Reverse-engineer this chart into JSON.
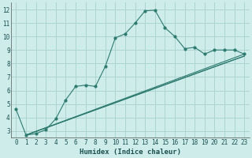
{
  "xlabel": "Humidex (Indice chaleur)",
  "background_color": "#ceecea",
  "grid_color": "#aed4d0",
  "line_color": "#2d7a6f",
  "xlim": [
    -0.5,
    23.5
  ],
  "ylim": [
    2.5,
    12.5
  ],
  "xticks": [
    0,
    1,
    2,
    3,
    4,
    5,
    6,
    7,
    8,
    9,
    10,
    11,
    12,
    13,
    14,
    15,
    16,
    17,
    18,
    19,
    20,
    21,
    22,
    23
  ],
  "yticks": [
    3,
    4,
    5,
    6,
    7,
    8,
    9,
    10,
    11,
    12
  ],
  "series_main": {
    "x": [
      0,
      1,
      2,
      3,
      4,
      5,
      6,
      7,
      8,
      9,
      10,
      11,
      12,
      13,
      14,
      15,
      16,
      17,
      18,
      19,
      20,
      21,
      22,
      23
    ],
    "y": [
      4.6,
      2.7,
      2.8,
      3.1,
      3.9,
      5.3,
      6.3,
      6.4,
      6.3,
      7.8,
      9.9,
      10.2,
      11.0,
      11.9,
      11.95,
      10.65,
      10.0,
      9.1,
      9.2,
      8.7,
      9.0,
      9.0,
      9.0,
      8.7
    ]
  },
  "series_linear": [
    {
      "x": [
        1,
        23
      ],
      "y": [
        2.7,
        8.55
      ]
    },
    {
      "x": [
        1,
        23
      ],
      "y": [
        2.7,
        8.7
      ]
    },
    {
      "x": [
        1,
        19,
        23
      ],
      "y": [
        2.7,
        7.5,
        8.55
      ]
    }
  ]
}
